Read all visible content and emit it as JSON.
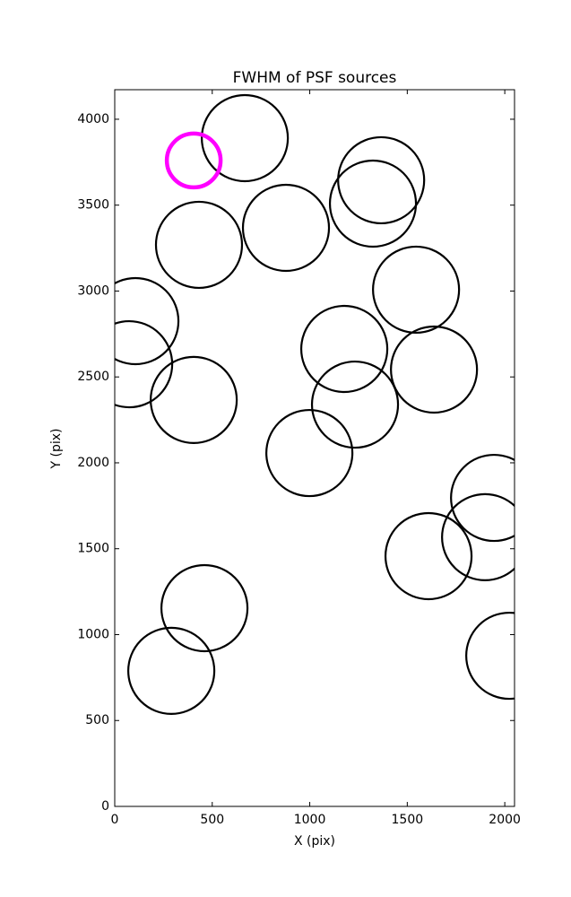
{
  "chart_data": {
    "type": "scatter",
    "title": "FWHM of PSF sources",
    "x_label": "X (pix)",
    "y_label": "Y (pix)",
    "series": [
      {
        "color": "#000000",
        "x": [
          667,
          432,
          878,
          1366,
          1324,
          106,
          74,
          405,
          1545,
          1177,
          1637,
          1232,
          998,
          1945,
          1899,
          1609,
          460,
          290,
          2023
        ],
        "values": [
          3890,
          3269,
          3368,
          3645,
          3509,
          2825,
          2574,
          2366,
          3008,
          2663,
          2543,
          2339,
          2057,
          1796,
          1567,
          1457,
          1154,
          789,
          877
        ]
      },
      {
        "color": "#ff00ff",
        "x": [
          405
        ],
        "values": [
          3760
        ]
      }
    ],
    "xlim": [
      0,
      2050
    ],
    "ylim": [
      0,
      4172
    ],
    "xticks": [
      0,
      500,
      1000,
      1500,
      2000
    ],
    "yticks": [
      0,
      500,
      1000,
      1500,
      2000,
      2500,
      3000,
      3500,
      4000
    ]
  }
}
